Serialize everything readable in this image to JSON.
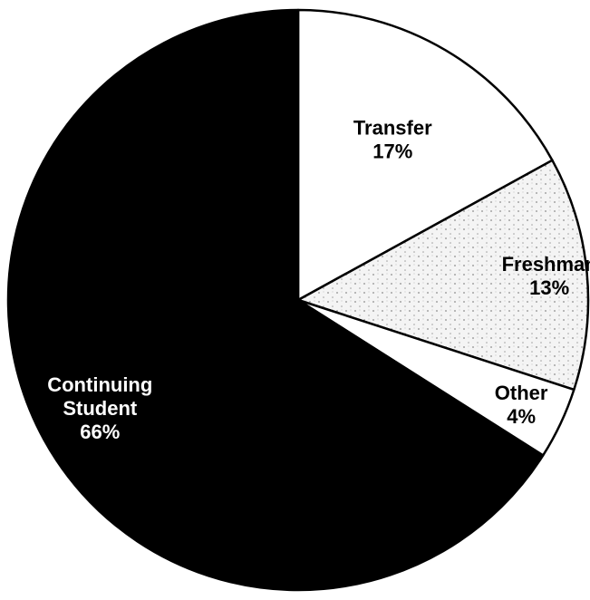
{
  "chart_data": {
    "type": "pie",
    "slices": [
      {
        "name": "Transfer",
        "pct_label": "17%",
        "value": 17,
        "color": "#ffffff",
        "pattern": "none",
        "label_color": "#000000",
        "label_weight": "bold"
      },
      {
        "name": "Freshman",
        "pct_label": "13%",
        "value": 13,
        "color": "#f2f2f2",
        "pattern": "stipple",
        "label_color": "#000000",
        "label_weight": "bold"
      },
      {
        "name": "Other",
        "pct_label": "4%",
        "value": 4,
        "color": "#ffffff",
        "pattern": "none",
        "label_color": "#000000",
        "label_weight": "bold"
      },
      {
        "name": "Continuing Student",
        "name_lines": [
          "Continuing",
          "Student"
        ],
        "pct_label": "66%",
        "value": 66,
        "color": "#000000",
        "pattern": "none",
        "label_color": "#ffffff",
        "label_weight": "normal"
      }
    ],
    "start_angle_deg": 0,
    "direction": "clockwise",
    "colors": {
      "outline": "#000000",
      "stipple_dot": "#8c8c8c"
    }
  }
}
